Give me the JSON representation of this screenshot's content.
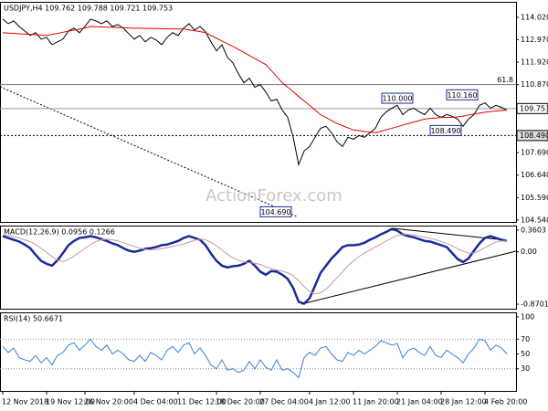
{
  "chart_data": [
    {
      "type": "line",
      "title": "USDJPY,H4 109.762 109.788 109.721 109.753",
      "watermark": "ActionForex.com",
      "ylim": [
        104.45,
        114.7
      ],
      "yticks": [
        {
          "value": 114.02,
          "label": "114.020"
        },
        {
          "value": 112.97,
          "label": "112.970"
        },
        {
          "value": 111.92,
          "label": "111.920"
        },
        {
          "value": 110.87,
          "label": "110.870"
        },
        {
          "value": 107.69,
          "label": "107.690"
        },
        {
          "value": 106.64,
          "label": "106.640"
        },
        {
          "value": 105.59,
          "label": "105.590"
        },
        {
          "value": 104.54,
          "label": "104.540"
        }
      ],
      "series": [
        {
          "color": "#000000",
          "values": [
            113.93,
            113.72,
            113.85,
            113.59,
            113.38,
            113.17,
            113.3,
            113.0,
            113.08,
            112.74,
            112.87,
            113.0,
            113.38,
            113.51,
            113.3,
            113.59,
            113.93,
            113.85,
            113.72,
            113.85,
            113.59,
            113.68,
            113.51,
            113.25,
            113.0,
            113.17,
            112.87,
            113.08,
            112.96,
            112.74,
            113.08,
            113.3,
            113.17,
            113.51,
            113.72,
            113.42,
            113.59,
            113.34,
            112.87,
            112.45,
            112.74,
            112.15,
            111.89,
            111.38,
            110.96,
            111.17,
            110.75,
            110.87,
            110.53,
            110.11,
            110.19,
            109.68,
            109.34,
            108.41,
            107.13,
            107.77,
            107.98,
            108.41,
            108.83,
            108.92,
            108.62,
            108.2,
            107.98,
            108.41,
            108.32,
            108.49,
            108.41,
            108.62,
            108.83,
            109.34,
            109.6,
            109.77,
            109.9,
            109.47,
            109.68,
            109.77,
            109.6,
            109.47,
            109.77,
            109.47,
            109.34,
            109.47,
            109.39,
            109.26,
            108.92,
            109.26,
            109.47,
            109.9,
            110.02,
            109.77,
            109.9,
            109.81,
            109.68
          ]
        },
        {
          "color": "#e00000",
          "values": [
            113.3,
            113.28,
            113.27,
            113.25,
            113.24,
            113.22,
            113.21,
            113.19,
            113.17,
            113.22,
            113.27,
            113.32,
            113.37,
            113.42,
            113.47,
            113.52,
            113.59,
            113.58,
            113.57,
            113.56,
            113.55,
            113.54,
            113.53,
            113.52,
            113.51,
            113.51,
            113.5,
            113.5,
            113.49,
            113.49,
            113.48,
            113.48,
            113.47,
            113.47,
            113.43,
            113.39,
            113.35,
            113.3,
            113.17,
            113.04,
            112.91,
            112.78,
            112.66,
            112.52,
            112.38,
            112.23,
            112.09,
            111.95,
            111.81,
            111.53,
            111.25,
            110.96,
            110.75,
            110.54,
            110.32,
            110.11,
            109.9,
            109.68,
            109.47,
            109.33,
            109.19,
            109.05,
            108.95,
            108.85,
            108.75,
            108.72,
            108.68,
            108.65,
            108.62,
            108.69,
            108.76,
            108.83,
            108.9,
            108.98,
            109.05,
            109.12,
            109.19,
            109.26,
            109.29,
            109.31,
            109.34,
            109.34,
            109.34,
            109.36,
            109.4,
            109.45,
            109.5,
            109.54,
            109.58,
            109.61,
            109.64,
            109.66,
            109.68
          ]
        }
      ],
      "price_boxes": [
        {
          "value": 109.753,
          "label": "109.753"
        },
        {
          "value": 108.49,
          "label": "108.490"
        }
      ],
      "fib_label": "61.8",
      "fib_price": 110.87,
      "annotations": [
        {
          "value": 104.69,
          "label": "104.690"
        },
        {
          "value": 110.0,
          "label": "110.000"
        },
        {
          "value": 110.16,
          "label": "110.160"
        },
        {
          "value": 108.49,
          "label": "108.490"
        }
      ]
    },
    {
      "type": "line",
      "title": "MACD(12,26,9) 0.0956 0.1266",
      "ylim": [
        -0.945,
        0.42
      ],
      "yticks": [
        0.3603,
        {
          "value": 0,
          "label": "0.00"
        },
        -0.8701
      ],
      "series": [
        {
          "color": "#1a2a9c",
          "values": [
            0.26,
            0.23,
            0.2,
            0.17,
            0.12,
            0.06,
            -0.05,
            -0.15,
            -0.2,
            -0.23,
            -0.14,
            -0.02,
            0.11,
            0.18,
            0.23,
            0.24,
            0.26,
            0.24,
            0.21,
            0.18,
            0.14,
            0.11,
            0.06,
            0.02,
            0.0,
            0.02,
            0.05,
            0.06,
            0.08,
            0.11,
            0.12,
            0.15,
            0.18,
            0.23,
            0.26,
            0.23,
            0.2,
            0.11,
            -0.03,
            -0.15,
            -0.23,
            -0.26,
            -0.24,
            -0.23,
            -0.2,
            -0.15,
            -0.23,
            -0.33,
            -0.38,
            -0.32,
            -0.33,
            -0.38,
            -0.45,
            -0.6,
            -0.83,
            -0.86,
            -0.77,
            -0.56,
            -0.35,
            -0.23,
            -0.11,
            -0.02,
            0.08,
            0.11,
            0.11,
            0.12,
            0.15,
            0.2,
            0.24,
            0.29,
            0.33,
            0.38,
            0.35,
            0.29,
            0.26,
            0.24,
            0.21,
            0.18,
            0.17,
            0.14,
            0.11,
            0.08,
            -0.02,
            -0.12,
            -0.17,
            -0.11,
            0.02,
            0.14,
            0.23,
            0.26,
            0.23,
            0.2,
            0.18
          ]
        },
        {
          "color": "#c89a9a",
          "values": [
            0.28,
            0.27,
            0.25,
            0.23,
            0.2,
            0.17,
            0.12,
            0.06,
            -0.01,
            -0.08,
            -0.14,
            -0.16,
            -0.13,
            -0.07,
            -0.01,
            0.06,
            0.12,
            0.17,
            0.2,
            0.21,
            0.2,
            0.18,
            0.15,
            0.12,
            0.09,
            0.06,
            0.04,
            0.03,
            0.04,
            0.05,
            0.07,
            0.09,
            0.11,
            0.13,
            0.16,
            0.19,
            0.21,
            0.2,
            0.16,
            0.1,
            0.03,
            -0.04,
            -0.1,
            -0.14,
            -0.17,
            -0.18,
            -0.19,
            -0.21,
            -0.25,
            -0.28,
            -0.3,
            -0.32,
            -0.35,
            -0.4,
            -0.48,
            -0.58,
            -0.66,
            -0.7,
            -0.68,
            -0.62,
            -0.53,
            -0.43,
            -0.33,
            -0.23,
            -0.15,
            -0.08,
            -0.02,
            0.03,
            0.08,
            0.13,
            0.18,
            0.23,
            0.27,
            0.29,
            0.29,
            0.28,
            0.26,
            0.24,
            0.22,
            0.2,
            0.17,
            0.14,
            0.1,
            0.05,
            0.01,
            -0.02,
            -0.02,
            0.02,
            0.07,
            0.12,
            0.16,
            0.18,
            0.18
          ]
        }
      ]
    },
    {
      "type": "line",
      "title": "RSI(14) 50.6671",
      "ylim": [
        0,
        105
      ],
      "yticks": [
        100,
        70,
        50,
        30
      ],
      "levels": [
        70,
        30
      ],
      "categories": [
        "12 Nov 2018",
        null,
        null,
        null,
        null,
        null,
        null,
        null,
        "19 Nov 12:00",
        null,
        null,
        null,
        null,
        null,
        null,
        "26 Nov 20:00",
        null,
        null,
        null,
        null,
        null,
        null,
        null,
        null,
        "4 Dec 04:00",
        null,
        null,
        null,
        null,
        null,
        null,
        null,
        "11 Dec 12:00",
        null,
        null,
        null,
        null,
        null,
        null,
        "18 Dec 20:00",
        null,
        null,
        null,
        null,
        null,
        null,
        null,
        "27 Dec 04:00",
        null,
        null,
        null,
        null,
        null,
        null,
        null,
        null,
        "4 Jan 12:00",
        null,
        null,
        null,
        null,
        null,
        null,
        null,
        "11 Jan 20:00",
        null,
        null,
        null,
        null,
        null,
        null,
        null,
        "21 Jan 04:00",
        null,
        null,
        null,
        null,
        null,
        null,
        null,
        "28 Jan 12:00",
        null,
        null,
        null,
        null,
        null,
        null,
        null,
        "4 Feb 20:00",
        null,
        null,
        null,
        null
      ],
      "series": [
        {
          "color": "#3a7fd8",
          "values": [
            60,
            52,
            58,
            45,
            42,
            40,
            48,
            38,
            45,
            35,
            48,
            52,
            62,
            65,
            55,
            62,
            70,
            60,
            55,
            62,
            50,
            55,
            50,
            42,
            40,
            48,
            40,
            52,
            48,
            42,
            55,
            60,
            52,
            62,
            65,
            50,
            58,
            48,
            35,
            30,
            42,
            28,
            30,
            25,
            28,
            40,
            30,
            42,
            32,
            28,
            42,
            28,
            30,
            25,
            18,
            45,
            52,
            48,
            58,
            60,
            50,
            42,
            40,
            52,
            48,
            55,
            50,
            55,
            60,
            68,
            65,
            62,
            64,
            45,
            55,
            58,
            52,
            48,
            60,
            48,
            45,
            55,
            50,
            45,
            38,
            50,
            58,
            70,
            68,
            55,
            62,
            58,
            50
          ]
        }
      ]
    }
  ]
}
